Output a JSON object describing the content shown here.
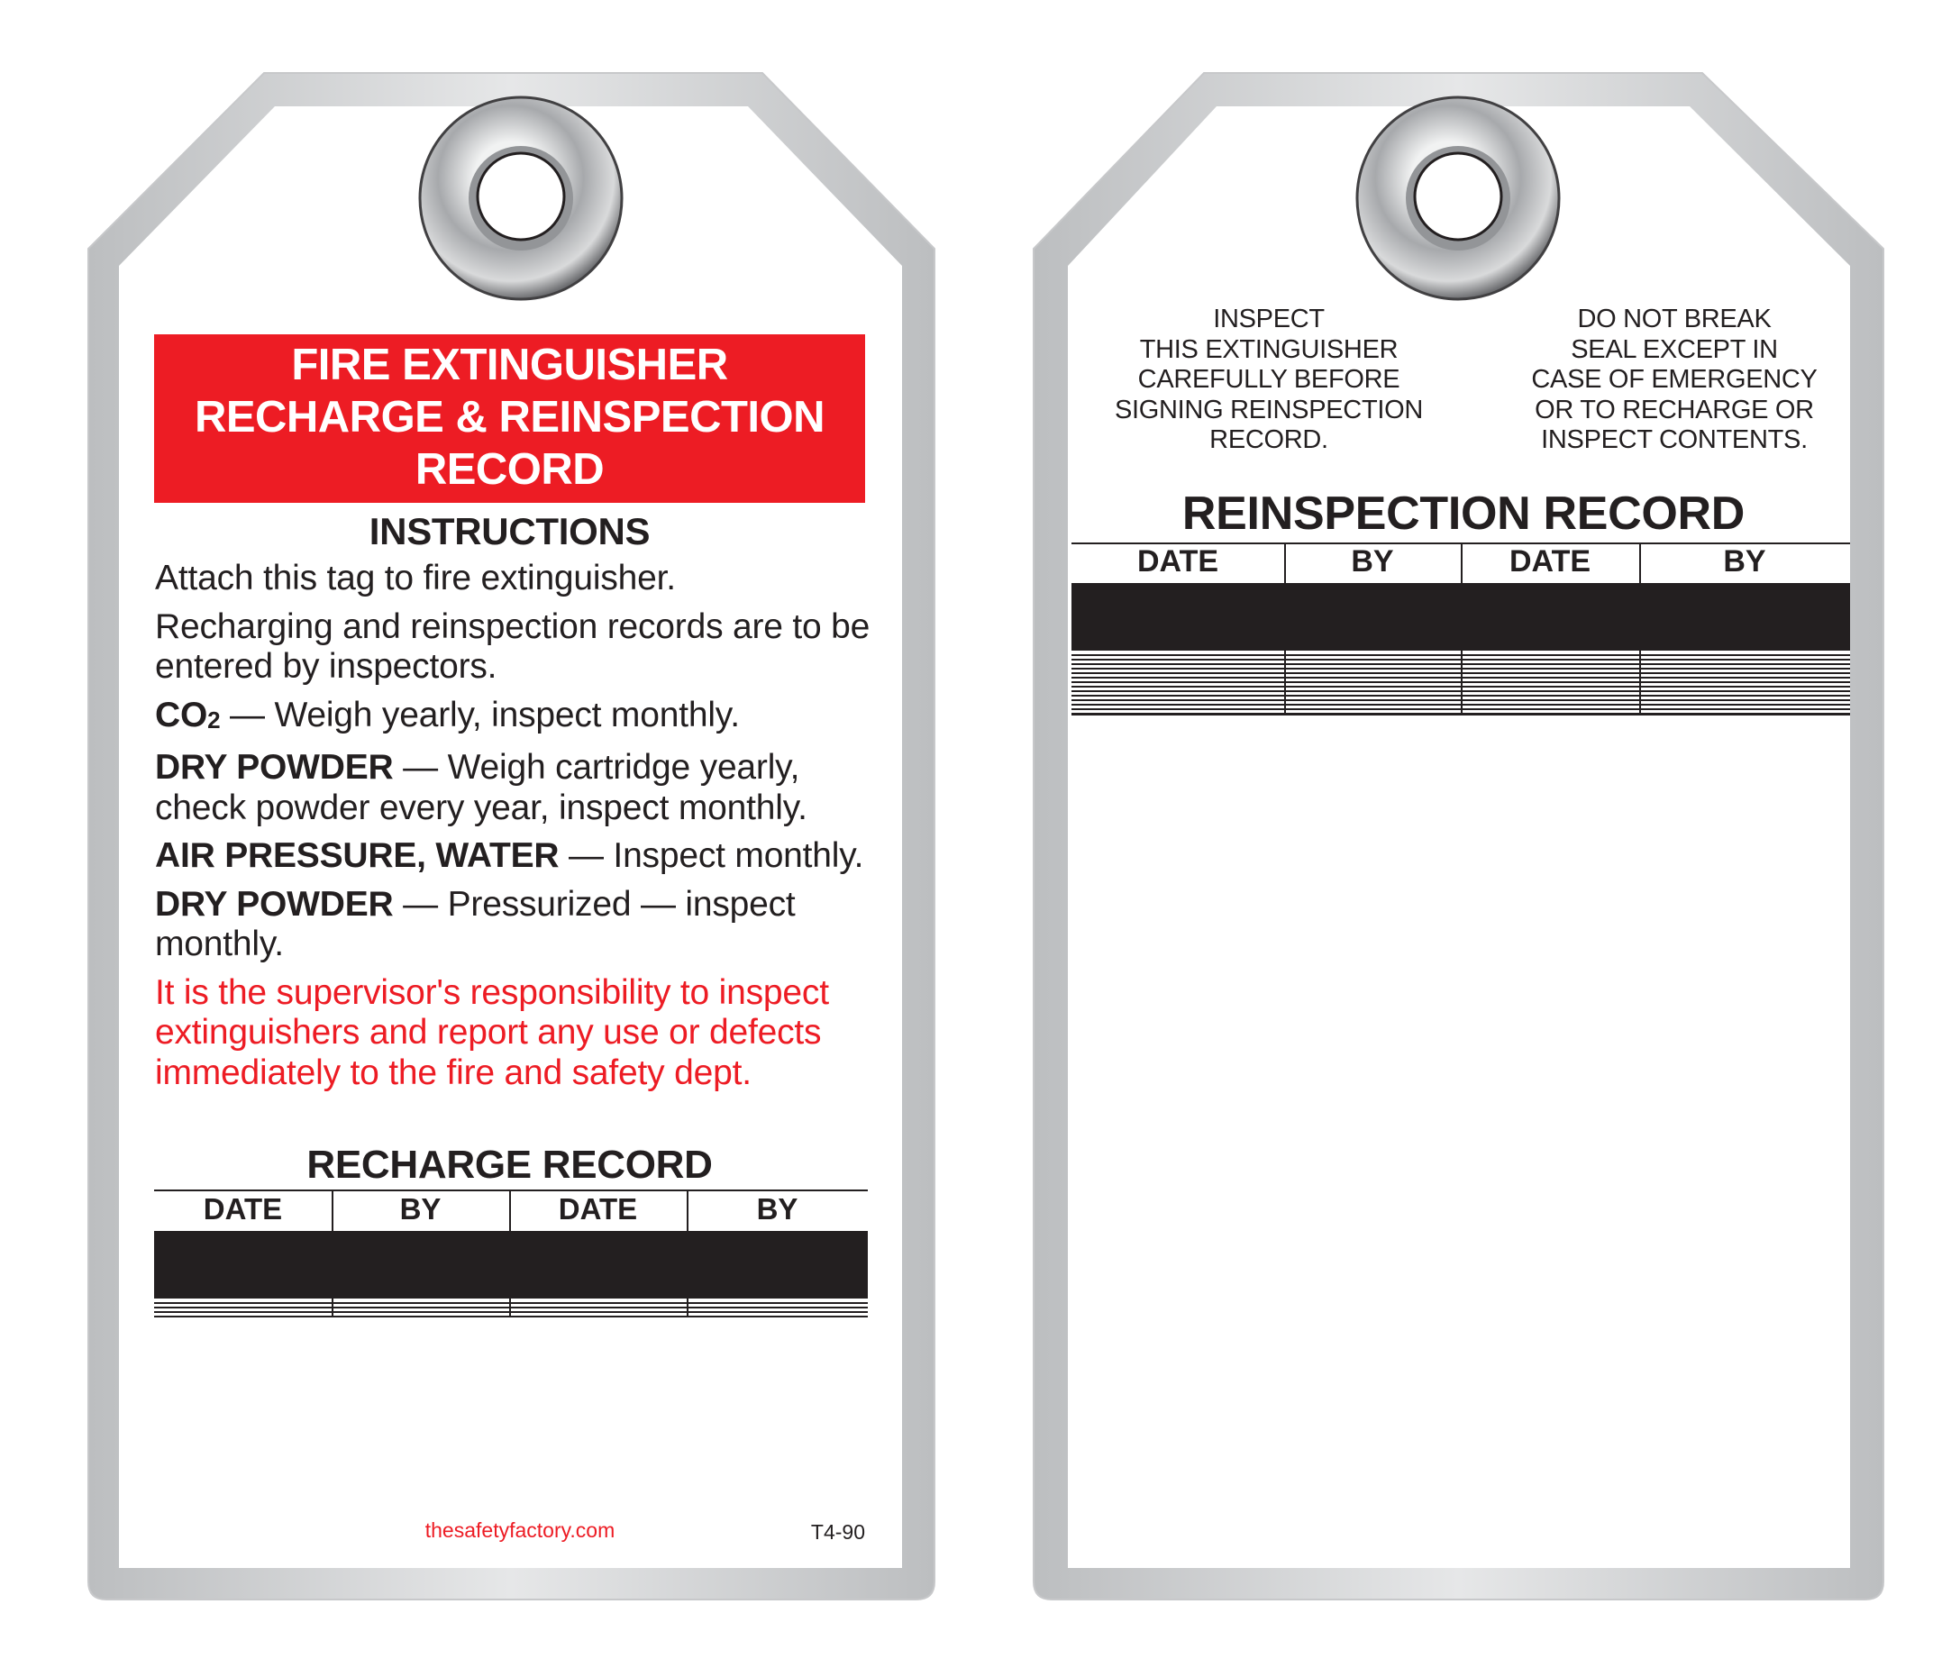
{
  "front": {
    "banner_title": [
      "FIRE EXTINGUISHER",
      "RECHARGE & REINSPECTION",
      "RECORD"
    ],
    "instructions_heading": "INSTRUCTIONS",
    "lines": [
      {
        "bold": "",
        "text": "Attach this tag to fire extinguisher."
      },
      {
        "bold": "",
        "text": "Recharging and reinspection records are to be entered by inspectors."
      },
      {
        "bold": "CO",
        "sub": "2",
        "text": " — Weigh yearly, inspect monthly."
      },
      {
        "bold": "DRY POWDER",
        "text": " — Weigh cartridge yearly, check powder every year, inspect monthly."
      },
      {
        "bold": "AIR PRESSURE, WATER",
        "text": " — Inspect monthly."
      },
      {
        "bold": "DRY POWDER",
        "text": " — Pressurized — inspect monthly."
      }
    ],
    "warning": "It is the supervisor's responsibility to inspect extinguishers and report any use or defects immediately to the fire and safety dept.",
    "recharge_title": "RECHARGE RECORD",
    "recharge_columns": [
      "DATE",
      "BY",
      "DATE",
      "BY"
    ],
    "website": "thesafetyfactory.com",
    "product_code": "T4-90"
  },
  "back": {
    "note_left": [
      "INSPECT",
      "THIS EXTINGUISHER",
      "CAREFULLY BEFORE",
      "SIGNING REINSPECTION",
      "RECORD."
    ],
    "note_right": [
      "DO NOT BREAK",
      "SEAL EXCEPT IN",
      "CASE OF EMERGENCY",
      "OR TO RECHARGE OR",
      "INSPECT CONTENTS."
    ],
    "reinspection_title": "REINSPECTION RECORD",
    "reinspection_columns": [
      "DATE",
      "BY",
      "DATE",
      "BY"
    ]
  },
  "colors": {
    "brand_red": "#ed1c24",
    "text": "#231f20",
    "tag_border": "#d1d3d4"
  },
  "icons": [
    "metal-grommet-icon"
  ]
}
